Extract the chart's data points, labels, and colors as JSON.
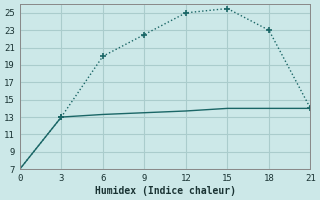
{
  "xlabel": "Humidex (Indice chaleur)",
  "background_color": "#cce8e8",
  "grid_color": "#aacccc",
  "line_color": "#1a6666",
  "xlim": [
    0,
    21
  ],
  "ylim": [
    7,
    26
  ],
  "xticks": [
    0,
    3,
    6,
    9,
    12,
    15,
    18,
    21
  ],
  "yticks": [
    7,
    9,
    11,
    13,
    15,
    17,
    19,
    21,
    23,
    25
  ],
  "line1_x": [
    0,
    3,
    6,
    9,
    12,
    15,
    18,
    21
  ],
  "line1_y": [
    7,
    13,
    20,
    22.5,
    25,
    25.5,
    23,
    14
  ],
  "line2_x": [
    0,
    3,
    6,
    9,
    12,
    15,
    18,
    21
  ],
  "line2_y": [
    7,
    13,
    13.3,
    13.5,
    13.7,
    14.0,
    14.0,
    14.0
  ],
  "marker1_x": [
    3,
    6,
    9,
    12,
    15,
    18,
    21
  ],
  "marker1_y": [
    13,
    20,
    22.5,
    25,
    25.5,
    23,
    14
  ],
  "marker2_x": [
    3
  ],
  "marker2_y": [
    13
  ]
}
